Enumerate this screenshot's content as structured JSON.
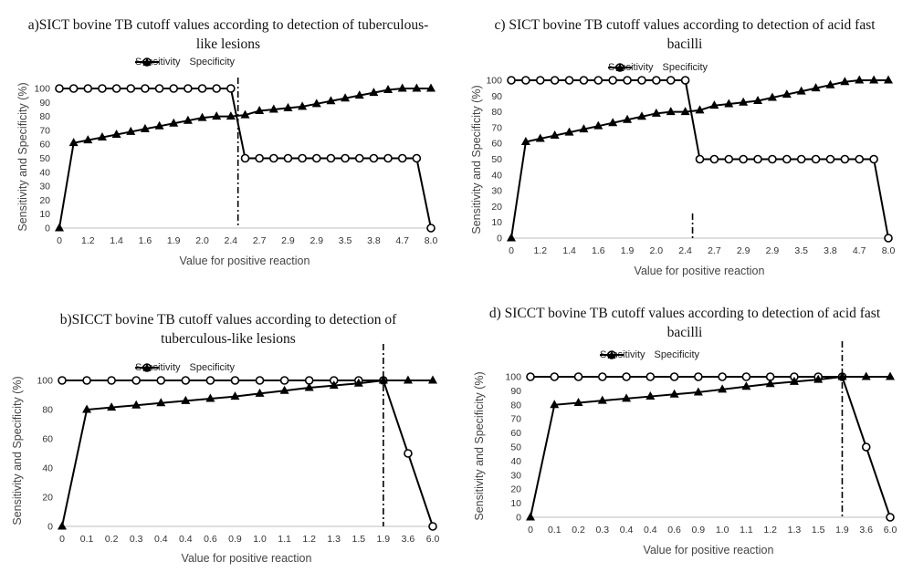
{
  "legend": {
    "sensitivity": "Sensitivity",
    "specificity": "Specificity"
  },
  "chart_data": [
    {
      "id": "a",
      "type": "line",
      "title": "a)SICT bovine TB cutoff values according to detection of tuberculous-like lesions",
      "title_lines": [
        "a)SICT bovine TB cutoff values according to detection of tuberculous-",
        "like lesions"
      ],
      "xlabel": "Value for positive reaction",
      "ylabel": "Sensitivity and Specificity (%)",
      "ylim": [
        0,
        100
      ],
      "yticks": [
        0,
        10,
        20,
        30,
        40,
        50,
        60,
        70,
        80,
        90,
        100
      ],
      "xtick_labels": [
        "0",
        "1.2",
        "1.4",
        "1.6",
        "1.9",
        "2.0",
        "2.4",
        "2.7",
        "2.9",
        "2.9",
        "3.5",
        "3.8",
        "4.7",
        "8.0"
      ],
      "n_points": 27,
      "cutoff_index": 12.5,
      "series": [
        {
          "name": "Sensitivity",
          "marker": "circle",
          "values": [
            100,
            100,
            100,
            100,
            100,
            100,
            100,
            100,
            100,
            100,
            100,
            100,
            100,
            50,
            50,
            50,
            50,
            50,
            50,
            50,
            50,
            50,
            50,
            50,
            50,
            50,
            0
          ]
        },
        {
          "name": "Specificity",
          "marker": "triangle",
          "values": [
            0,
            61,
            63,
            65,
            67,
            69,
            71,
            73,
            75,
            77,
            79,
            80,
            80,
            81,
            84,
            85,
            86,
            87,
            89,
            91,
            93,
            95,
            97,
            99,
            100,
            100,
            100
          ]
        }
      ]
    },
    {
      "id": "c",
      "type": "line",
      "title": "c) SICT bovine TB cutoff values according to detection of acid fast bacilli",
      "title_lines": [
        "c) SICT bovine TB cutoff values according to detection of acid fast",
        "bacilli"
      ],
      "xlabel": "Value for positive reaction",
      "ylabel": "Sensitivity and Specificity (%)",
      "ylim": [
        0,
        100
      ],
      "yticks": [
        0,
        10,
        20,
        30,
        40,
        50,
        60,
        70,
        80,
        90,
        100
      ],
      "xtick_labels": [
        "0",
        "1.2",
        "1.4",
        "1.6",
        "1.9",
        "2.0",
        "2.4",
        "2.7",
        "2.9",
        "2.9",
        "3.5",
        "3.8",
        "4.7",
        "8.0"
      ],
      "n_points": 27,
      "cutoff_index": 12.5,
      "series": [
        {
          "name": "Sensitivity",
          "marker": "circle",
          "values": [
            100,
            100,
            100,
            100,
            100,
            100,
            100,
            100,
            100,
            100,
            100,
            100,
            100,
            50,
            50,
            50,
            50,
            50,
            50,
            50,
            50,
            50,
            50,
            50,
            50,
            50,
            0
          ]
        },
        {
          "name": "Specificity",
          "marker": "triangle",
          "values": [
            0,
            61,
            63,
            65,
            67,
            69,
            71,
            73,
            75,
            77,
            79,
            80,
            80,
            81,
            84,
            85,
            86,
            87,
            89,
            91,
            93,
            95,
            97,
            99,
            100,
            100,
            100
          ]
        }
      ]
    },
    {
      "id": "b",
      "type": "line",
      "title": "b)SICCT bovine TB cutoff values according to detection of tuberculous-like lesions",
      "title_lines": [
        "b)SICCT bovine TB cutoff values according to detection of",
        "tuberculous-like lesions"
      ],
      "xlabel": "Value for positive reaction",
      "ylabel": "Sensitivity and Specificity (%)",
      "ylim": [
        0,
        100
      ],
      "yticks": [
        0,
        20,
        40,
        60,
        80,
        100
      ],
      "xtick_labels": [
        "0",
        "0.1",
        "0.2",
        "0.3",
        "0.4",
        "0.4",
        "0.6",
        "0.9",
        "1.0",
        "1.1",
        "1.2",
        "1.3",
        "1.5",
        "1.9",
        "3.6",
        "6.0"
      ],
      "n_points": 16,
      "cutoff_index": 13,
      "series": [
        {
          "name": "Sensitivity",
          "marker": "circle",
          "values": [
            100,
            100,
            100,
            100,
            100,
            100,
            100,
            100,
            100,
            100,
            100,
            100,
            100,
            100,
            50,
            0
          ]
        },
        {
          "name": "Specificity",
          "marker": "triangle",
          "values": [
            0,
            80,
            81.5,
            83,
            84.5,
            86,
            87.5,
            89,
            91,
            93,
            95,
            96.5,
            98,
            100,
            100,
            100
          ]
        }
      ]
    },
    {
      "id": "d",
      "type": "line",
      "title": "d) SICCT bovine TB cutoff values according to detection of acid fast bacilli",
      "title_lines": [
        "d) SICCT bovine TB cutoff values according to detection of acid fast",
        "bacilli"
      ],
      "xlabel": "Value for positive reaction",
      "ylabel": "Sensitivity and Specificity (%)",
      "ylim": [
        0,
        100
      ],
      "yticks": [
        0,
        10,
        20,
        30,
        40,
        50,
        60,
        70,
        80,
        90,
        100
      ],
      "xtick_labels": [
        "0",
        "0.1",
        "0.2",
        "0.3",
        "0.4",
        "0.4",
        "0.6",
        "0.9",
        "1.0",
        "1.1",
        "1.2",
        "1.3",
        "1.5",
        "1.9",
        "3.6",
        "6.0"
      ],
      "n_points": 16,
      "cutoff_index": 13,
      "series": [
        {
          "name": "Sensitivity",
          "marker": "circle",
          "values": [
            100,
            100,
            100,
            100,
            100,
            100,
            100,
            100,
            100,
            100,
            100,
            100,
            100,
            100,
            50,
            0
          ]
        },
        {
          "name": "Specificity",
          "marker": "triangle",
          "values": [
            0,
            80,
            81.5,
            83,
            84.5,
            86,
            87.5,
            89,
            91,
            93,
            95,
            96.5,
            98,
            100,
            100,
            100
          ]
        }
      ]
    }
  ]
}
